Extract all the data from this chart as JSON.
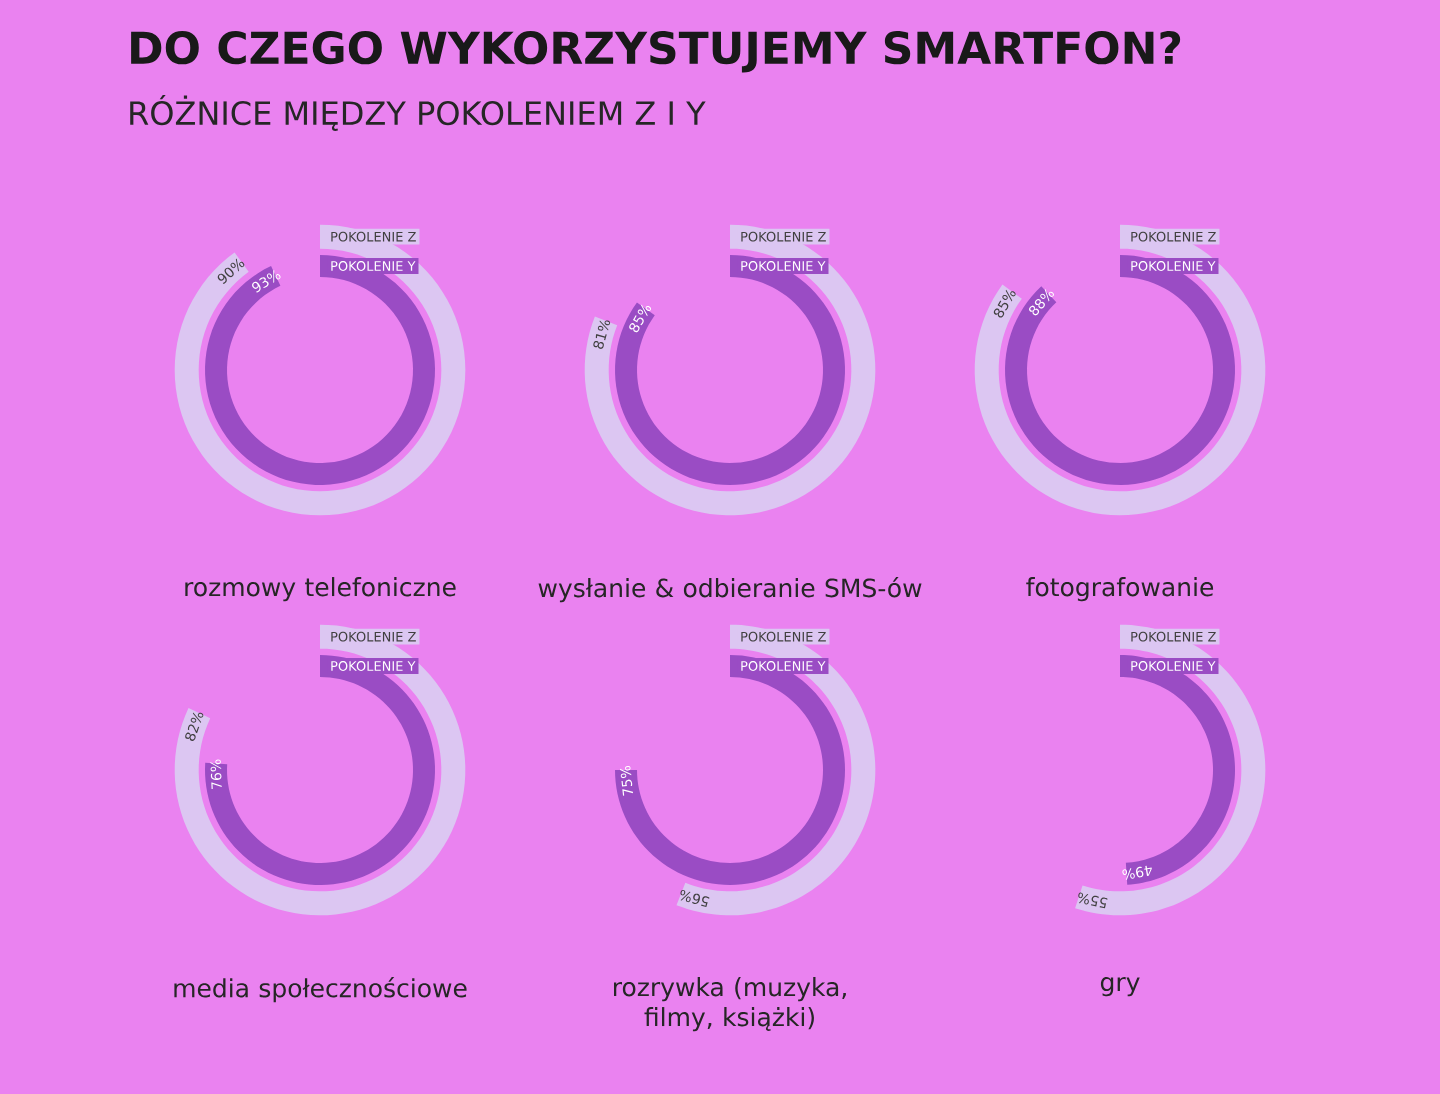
{
  "chart_data": [
    {
      "type": "other",
      "title": "DO CZEGO WYKORZYSTUJEMY SMARTFON?",
      "subtitle": "RÓŻNICE MIĘDZY POKOLENIEM Z I Y",
      "categories": [
        "rozmowy telefoniczne"
      ],
      "series": [
        {
          "name": "POKOLENIE Z",
          "color": "#dcc6f2",
          "values": [
            90
          ],
          "value_labels": [
            "90%"
          ]
        },
        {
          "name": "POKOLENIE Y",
          "color": "#9a4cc4",
          "values": [
            93
          ],
          "value_labels": [
            "93%"
          ]
        }
      ]
    },
    {
      "type": "other",
      "categories": [
        "wysłanie & odbieranie SMS-ów"
      ],
      "series": [
        {
          "name": "POKOLENIE Z",
          "color": "#dcc6f2",
          "values": [
            81
          ],
          "value_labels": [
            "81%"
          ]
        },
        {
          "name": "POKOLENIE Y",
          "color": "#9a4cc4",
          "values": [
            85
          ],
          "value_labels": [
            "85%"
          ]
        }
      ]
    },
    {
      "type": "other",
      "categories": [
        "fotografowanie"
      ],
      "series": [
        {
          "name": "POKOLENIE Z",
          "color": "#dcc6f2",
          "values": [
            85
          ],
          "value_labels": [
            "85%"
          ]
        },
        {
          "name": "POKOLENIE Y",
          "color": "#9a4cc4",
          "values": [
            88
          ],
          "value_labels": [
            "88%"
          ]
        }
      ]
    },
    {
      "type": "other",
      "categories": [
        "media społecznościowe"
      ],
      "series": [
        {
          "name": "POKOLENIE Z",
          "color": "#dcc6f2",
          "values": [
            82
          ],
          "value_labels": [
            "82%"
          ]
        },
        {
          "name": "POKOLENIE Y",
          "color": "#9a4cc4",
          "values": [
            76
          ],
          "value_labels": [
            "76%"
          ]
        }
      ]
    },
    {
      "type": "other",
      "categories": [
        "rozrywka (muzyka, filmy, książki)"
      ],
      "series": [
        {
          "name": "POKOLENIE Z",
          "color": "#dcc6f2",
          "values": [
            56
          ],
          "value_labels": [
            "56%"
          ]
        },
        {
          "name": "POKOLENIE Y",
          "color": "#9a4cc4",
          "values": [
            75
          ],
          "value_labels": [
            "75%"
          ]
        }
      ]
    },
    {
      "type": "other",
      "categories": [
        "gry"
      ],
      "series": [
        {
          "name": "POKOLENIE Z",
          "color": "#dcc6f2",
          "values": [
            55
          ],
          "value_labels": [
            "55%"
          ]
        },
        {
          "name": "POKOLENIE Y",
          "color": "#9a4cc4",
          "values": [
            49
          ],
          "value_labels": [
            "49%"
          ]
        }
      ]
    }
  ]
}
